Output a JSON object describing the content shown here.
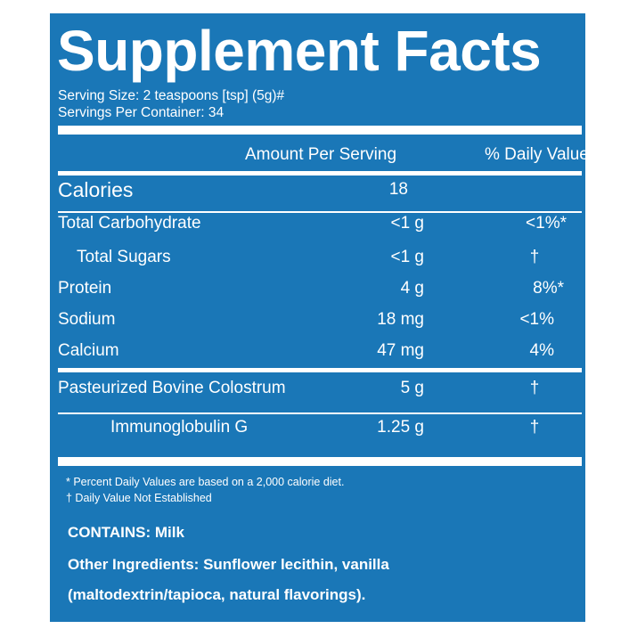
{
  "panel": {
    "title": "Supplement Facts",
    "serving_size": "Serving Size: 2 teaspoons [tsp] (5g)#",
    "servings_per_container": "Servings Per Container: 34",
    "col_amount": "Amount Per Serving",
    "col_dv": "% Daily Value",
    "rows": [
      {
        "label": "Calories",
        "amount": "18",
        "dv": ""
      },
      {
        "label": "Total Carbohydrate",
        "amount": "<1 g",
        "dv": "<1%*"
      },
      {
        "label": "Total Sugars",
        "amount": "<1 g",
        "dv": "†"
      },
      {
        "label": "Protein",
        "amount": "4 g",
        "dv": "8%*"
      },
      {
        "label": "Sodium",
        "amount": "18 mg",
        "dv": "<1%"
      },
      {
        "label": "Calcium",
        "amount": "47 mg",
        "dv": "4%"
      },
      {
        "label": "Pasteurized Bovine Colostrum",
        "amount": "5 g",
        "dv": "†"
      },
      {
        "label": "Immunoglobulin G",
        "amount": "1.25 g",
        "dv": "†"
      }
    ],
    "footnote_1": "* Percent Daily Values are based on a 2,000 calorie diet.",
    "footnote_2": "† Daily Value Not Established",
    "contains": "CONTAINS: Milk",
    "other_ingredients_1": "Other Ingredients: Sunflower lecithin, vanilla",
    "other_ingredients_2": "(maltodextrin/tapioca, natural flavorings)."
  },
  "colors": {
    "panel_background": "#1a77b7",
    "text": "#ffffff",
    "page_background": "#ffffff"
  }
}
